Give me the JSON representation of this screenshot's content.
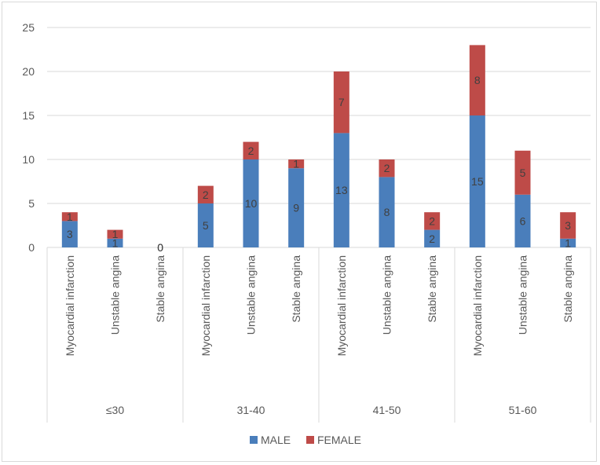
{
  "chart_data": {
    "type": "bar",
    "stacked": true,
    "title": "",
    "xlabel": "",
    "ylabel": "",
    "ylim": [
      0,
      25
    ],
    "yticks": [
      0,
      5,
      10,
      15,
      20,
      25
    ],
    "grid": true,
    "legend_position": "bottom",
    "groups": [
      "≤30",
      "31-40",
      "41-50",
      "51-60"
    ],
    "subcategories": [
      "Myocardial infarction",
      "Unstable angina",
      "Stable angina"
    ],
    "series": [
      {
        "name": "MALE",
        "color": "#4a7ebb",
        "values": [
          [
            3,
            1,
            0
          ],
          [
            5,
            10,
            9
          ],
          [
            13,
            8,
            2
          ],
          [
            15,
            6,
            1
          ]
        ]
      },
      {
        "name": "FEMALE",
        "color": "#be4b48",
        "values": [
          [
            1,
            1,
            0
          ],
          [
            2,
            2,
            1
          ],
          [
            7,
            2,
            2
          ],
          [
            8,
            5,
            3
          ]
        ]
      }
    ]
  }
}
